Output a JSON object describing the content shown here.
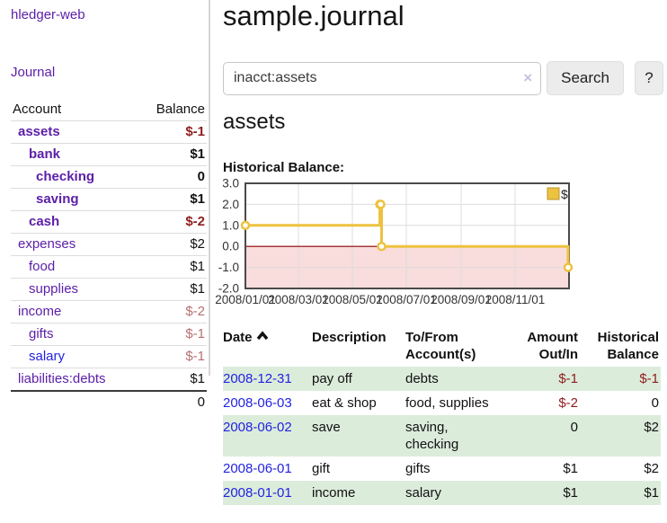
{
  "app": {
    "name": "hledger-web"
  },
  "colors": {
    "link_purple": "#5b1ea8",
    "link_blue": "#2323e0",
    "negative_strong": "#8f1d1d",
    "negative_soft": "#b86f6f",
    "row_green": "#dcecdb",
    "chart_yellow": "#edc240",
    "chart_yellow_border": "#b9962c",
    "chart_negative_fill": "#f9dcdc",
    "chart_zero_line": "#8b0000",
    "chart_grid": "#dddddd",
    "chart_border": "#4a4a4a"
  },
  "sidebar": {
    "brand": "hledger-web",
    "journal_label": "Journal",
    "accounts_table": {
      "headers": [
        "Account",
        "Balance"
      ],
      "rows": [
        {
          "name": "assets",
          "level": 1,
          "emph": true,
          "balance": "$-1"
        },
        {
          "name": "bank",
          "level": 2,
          "emph": true,
          "balance": "$1"
        },
        {
          "name": "checking",
          "level": 3,
          "emph": true,
          "balance": "0"
        },
        {
          "name": "saving",
          "level": 3,
          "emph": true,
          "balance": "$1"
        },
        {
          "name": "cash",
          "level": 2,
          "emph": true,
          "balance": "$-2"
        },
        {
          "name": "expenses",
          "level": 1,
          "emph": false,
          "balance": "$2"
        },
        {
          "name": "food",
          "level": 2,
          "emph": false,
          "balance": "$1"
        },
        {
          "name": "supplies",
          "level": 2,
          "emph": false,
          "balance": "$1"
        },
        {
          "name": "income",
          "level": 1,
          "emph": false,
          "balance": "$-2"
        },
        {
          "name": "gifts",
          "level": 2,
          "emph": false,
          "balance": "$-1"
        },
        {
          "name": "salary",
          "level": 2,
          "emph": false,
          "balance": "$-1",
          "link_blue": true
        },
        {
          "name": "liabilities:debts",
          "level": 1,
          "emph": false,
          "balance": "$1"
        }
      ],
      "total": "0"
    }
  },
  "main": {
    "title": "sample.journal",
    "search": {
      "value": "inacct:assets",
      "clear_icon": "×",
      "button_label": "Search",
      "help_label": "?"
    },
    "account_heading": "assets",
    "chart_label": "Historical Balance:"
  },
  "chart_data": {
    "type": "line",
    "title": "Historical Balance of assets",
    "step": true,
    "series": [
      {
        "name": "$",
        "points": [
          [
            "2008-01-01",
            1
          ],
          [
            "2008-06-01",
            2
          ],
          [
            "2008-06-02",
            2
          ],
          [
            "2008-06-03",
            0
          ],
          [
            "2008-12-31",
            -1
          ]
        ]
      }
    ],
    "ylim": [
      -2,
      3
    ],
    "yticks": [
      3.0,
      2.0,
      1.0,
      0.0,
      -1.0,
      -2.0
    ],
    "xrange": [
      "2008-01-01",
      "2009-01-01"
    ],
    "xticks": [
      "2008/01/01",
      "2008/03/01",
      "2008/05/01",
      "2008/07/01",
      "2008/09/01",
      "2008/11/01"
    ],
    "grid": true,
    "legend_position": "top-right",
    "legend": "$"
  },
  "register": {
    "headers": [
      "Date",
      "Description",
      "To/From Account(s)",
      "Amount Out/In",
      "Historical Balance"
    ],
    "rows": [
      {
        "date": "2008-12-31",
        "description": "pay off",
        "accounts": "debts",
        "amount": "$-1",
        "balance": "$-1"
      },
      {
        "date": "2008-06-03",
        "description": "eat & shop",
        "accounts": "food, supplies",
        "amount": "$-2",
        "balance": "0"
      },
      {
        "date": "2008-06-02",
        "description": "save",
        "accounts": "saving,\nchecking",
        "amount": "0",
        "balance": "$2"
      },
      {
        "date": "2008-06-01",
        "description": "gift",
        "accounts": "gifts",
        "amount": "$1",
        "balance": "$2"
      },
      {
        "date": "2008-01-01",
        "description": "income",
        "accounts": "salary",
        "amount": "$1",
        "balance": "$1"
      }
    ]
  }
}
